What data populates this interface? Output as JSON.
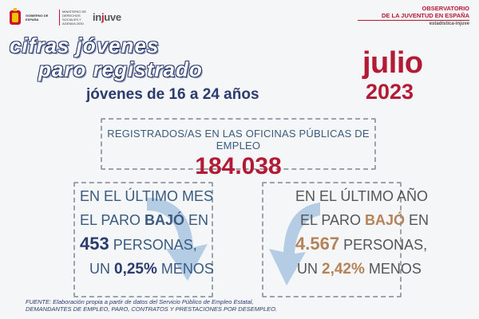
{
  "header": {
    "gov_text": "GOBIERNO DE ESPAÑA",
    "ministry_text": "MINISTERIO DE DERECHOS SOCIALES Y AGENDA 2030",
    "injuve_prefix": "in",
    "injuve_accent": "j",
    "injuve_suffix": "uve",
    "observatory_title_1": "OBSERVATORIO",
    "observatory_title_2": "DE LA JUVENTUD EN ESPAÑA",
    "observatory_sub": "estadística-injuve"
  },
  "title": {
    "line1": "cifras jóvenes",
    "line2": "paro registrado",
    "age_range": "jóvenes de 16 a 24 años",
    "month": "julio",
    "year": "2023"
  },
  "main_box": {
    "label": "REGISTRADOS/AS EN LAS OFICINAS PÚBLICAS DE EMPLEO",
    "value": "184.038"
  },
  "left_box": {
    "line1": "EN EL ÚLTIMO MES",
    "line2_a": "EL PARO ",
    "line2_b": "BAJÓ",
    "line2_c": " EN",
    "line3_num": "453",
    "line3_text": " PERSONAS,",
    "line4_a": "UN ",
    "line4_b": "0,25%",
    "line4_c": " MENOS"
  },
  "right_box": {
    "line1": "EN EL ÚLTIMO AÑO",
    "line2_a": "EL PARO ",
    "line2_b": "BAJÓ",
    "line2_c": " EN",
    "line3_num": "4.567",
    "line3_text": " PERSONAS,",
    "line4_a": "UN ",
    "line4_b": "2,42%",
    "line4_c": " MENOS"
  },
  "footer": {
    "line1": "FUENTE: Elaboración propia a partir de datos del Servicio Público de Empleo Estatal,",
    "line2": "DEMANDANTES DE EMPLEO, PARO, CONTRATOS Y PRESTACIONES POR DESEMPLEO."
  },
  "colors": {
    "accent_red": "#b31b34",
    "navy": "#2b3b6e",
    "steel_blue": "#3a5a80",
    "tan": "#b5835a",
    "arrow_blue": "#a9c6e0"
  }
}
